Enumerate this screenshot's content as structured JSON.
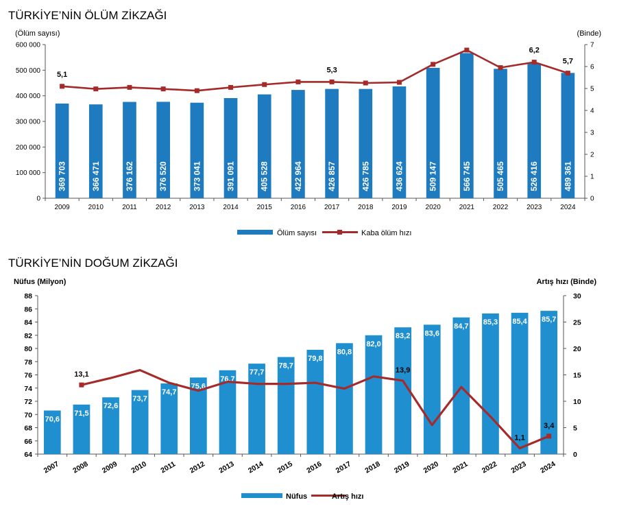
{
  "chart_data": [
    {
      "type": "bar",
      "title": "TÜRKİYE’NİN ÖLÜM ZİKZAĞI",
      "y_left_label": "(Ölüm sayısı)",
      "y_right_label": "(Binde)",
      "categories": [
        "2009",
        "2010",
        "2011",
        "2012",
        "2013",
        "2014",
        "2015",
        "2016",
        "2017",
        "2018",
        "2019",
        "2020",
        "2021",
        "2022",
        "2023",
        "2024"
      ],
      "y_left_range": [
        0,
        600000
      ],
      "y_left_ticks": [
        0,
        100000,
        200000,
        300000,
        400000,
        500000,
        600000
      ],
      "y_left_tick_labels": [
        "0",
        "100 000",
        "200 000",
        "300 000",
        "400 000",
        "500 000",
        "600 000"
      ],
      "y_right_range": [
        0,
        7
      ],
      "y_right_ticks": [
        "0",
        "1",
        "2",
        "3",
        "4",
        "5",
        "6",
        "7"
      ],
      "series": [
        {
          "name": "Ölüm sayısı",
          "kind": "bar",
          "color": "#1f7bbf",
          "values": [
            369703,
            366471,
            376162,
            376520,
            373041,
            391091,
            405528,
            422964,
            426857,
            426785,
            436624,
            509147,
            566745,
            505465,
            526416,
            489361
          ],
          "value_labels": [
            "369 703",
            "366 471",
            "376 162",
            "376 520",
            "373 041",
            "391 091",
            "405 528",
            "422 964",
            "426 857",
            "426 785",
            "436 624",
            "509 147",
            "566 745",
            "505 465",
            "526 416",
            "489 361"
          ]
        },
        {
          "name": "Kaba ölüm hızı",
          "kind": "line",
          "axis": "right",
          "color": "#a52a2a",
          "values": [
            5.1,
            4.98,
            5.05,
            4.98,
            4.9,
            5.05,
            5.18,
            5.3,
            5.3,
            5.25,
            5.28,
            6.1,
            6.75,
            5.95,
            6.2,
            5.7
          ],
          "point_labels": [
            {
              "index": 0,
              "text": "5,1"
            },
            {
              "index": 8,
              "text": "5,3"
            },
            {
              "index": 14,
              "text": "6,2"
            },
            {
              "index": 15,
              "text": "5,7"
            }
          ]
        }
      ],
      "legend": {
        "position": "bottom",
        "items": [
          "Ölüm sayısı",
          "Kaba ölüm hızı"
        ]
      }
    },
    {
      "type": "bar",
      "title": "TÜRKİYE’NİN DOĞUM ZİKZAĞI",
      "y_left_label": "Nüfus (Milyon)",
      "y_right_label": "Artış hızı (Binde)",
      "categories": [
        "2007",
        "2008",
        "2009",
        "2010",
        "2011",
        "2012",
        "2013",
        "2014",
        "2015",
        "2016",
        "2017",
        "2018",
        "2019",
        "2020",
        "2021",
        "2022",
        "2023",
        "2024"
      ],
      "y_left_range": [
        64,
        88
      ],
      "y_left_ticks": [
        "64",
        "66",
        "68",
        "70",
        "72",
        "74",
        "76",
        "78",
        "80",
        "82",
        "84",
        "86",
        "88"
      ],
      "y_right_range": [
        0,
        30
      ],
      "y_right_ticks": [
        "0",
        "5",
        "10",
        "15",
        "20",
        "25",
        "30"
      ],
      "series": [
        {
          "name": "Nüfus",
          "kind": "bar",
          "color": "#1f8fd0",
          "values": [
            70.6,
            71.5,
            72.6,
            73.7,
            74.7,
            75.6,
            76.7,
            77.7,
            78.7,
            79.8,
            80.8,
            82.0,
            83.2,
            83.6,
            84.7,
            85.3,
            85.4,
            85.7
          ],
          "value_labels": [
            "70,6",
            "71,5",
            "72,6",
            "73,7",
            "74,7",
            "75,6",
            "76,7",
            "77,7",
            "78,7",
            "79,8",
            "80,8",
            "82,0",
            "83,2",
            "83,6",
            "84,7",
            "85,3",
            "85,4",
            "85,7"
          ]
        },
        {
          "name": "Artış hızı",
          "kind": "line",
          "axis": "right",
          "color": "#a52a2a",
          "start_index": 1,
          "values": [
            null,
            13.1,
            14.4,
            15.9,
            13.5,
            12.0,
            13.7,
            13.3,
            13.3,
            13.5,
            12.4,
            14.7,
            13.9,
            5.5,
            12.7,
            7.1,
            1.1,
            3.4
          ],
          "point_labels": [
            {
              "index": 1,
              "text": "13,1"
            },
            {
              "index": 12,
              "text": "13,9"
            },
            {
              "index": 16,
              "text": "1,1"
            },
            {
              "index": 17,
              "text": "3,4"
            }
          ]
        }
      ],
      "legend": {
        "position": "bottom",
        "items": [
          "Nüfus",
          "Artış hızı"
        ]
      }
    }
  ]
}
